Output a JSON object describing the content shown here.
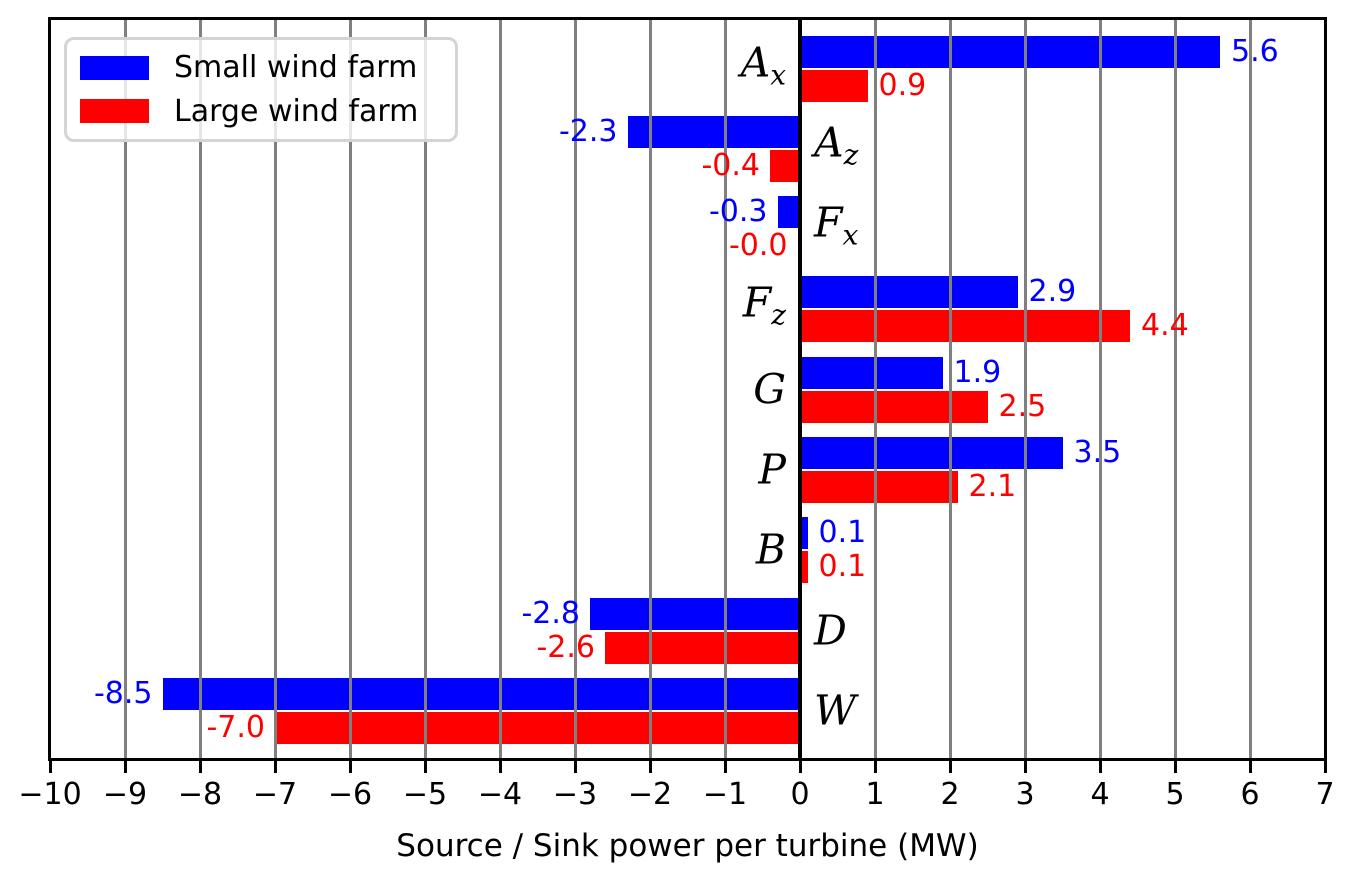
{
  "chart_data": {
    "type": "bar",
    "orientation": "horizontal",
    "title": "",
    "xlabel": "Source / Sink power per turbine (MW)",
    "ylabel": "",
    "xlim": [
      -10,
      7
    ],
    "xticks": [
      -10,
      -9,
      -8,
      -7,
      -6,
      -5,
      -4,
      -3,
      -2,
      -1,
      0,
      1,
      2,
      3,
      4,
      5,
      6,
      7
    ],
    "xtick_labels": [
      "−10",
      "−9",
      "−8",
      "−7",
      "−6",
      "−5",
      "−4",
      "−3",
      "−2",
      "−1",
      "0",
      "1",
      "2",
      "3",
      "4",
      "5",
      "6",
      "7"
    ],
    "grid": true,
    "grid_color": "#808080",
    "zero_line_color": "#000000",
    "legend_position": "upper left",
    "categories": [
      {
        "key": "A_x",
        "letter": "A",
        "sub": "x"
      },
      {
        "key": "A_z",
        "letter": "A",
        "sub": "z"
      },
      {
        "key": "F_x",
        "letter": "F",
        "sub": "x"
      },
      {
        "key": "F_z",
        "letter": "F",
        "sub": "z"
      },
      {
        "key": "G",
        "letter": "G",
        "sub": ""
      },
      {
        "key": "P",
        "letter": "P",
        "sub": ""
      },
      {
        "key": "B",
        "letter": "B",
        "sub": ""
      },
      {
        "key": "D",
        "letter": "D",
        "sub": ""
      },
      {
        "key": "W",
        "letter": "W",
        "sub": ""
      }
    ],
    "series": [
      {
        "name": "Small wind farm",
        "color": "#0000ff",
        "values": [
          5.6,
          -2.3,
          -0.3,
          2.9,
          1.9,
          3.5,
          0.1,
          -2.8,
          -8.5
        ],
        "value_labels": [
          "5.6",
          "-2.3",
          "-0.3",
          "2.9",
          "1.9",
          "3.5",
          "0.1",
          "-2.8",
          "-8.5"
        ]
      },
      {
        "name": "Large wind farm",
        "color": "#ff0000",
        "values": [
          0.9,
          -0.4,
          -0.0,
          4.4,
          2.5,
          2.1,
          0.1,
          -2.6,
          -7.0
        ],
        "value_labels": [
          "0.9",
          "-0.4",
          "-0.0",
          "4.4",
          "2.5",
          "2.1",
          "0.1",
          "-2.6",
          "-7.0"
        ]
      }
    ]
  },
  "legend": {
    "items": [
      {
        "label": "Small wind farm",
        "color": "#0000ff"
      },
      {
        "label": "Large wind farm",
        "color": "#ff0000"
      }
    ]
  },
  "axis": {
    "xlabel": "Source / Sink power per turbine (MW)"
  }
}
